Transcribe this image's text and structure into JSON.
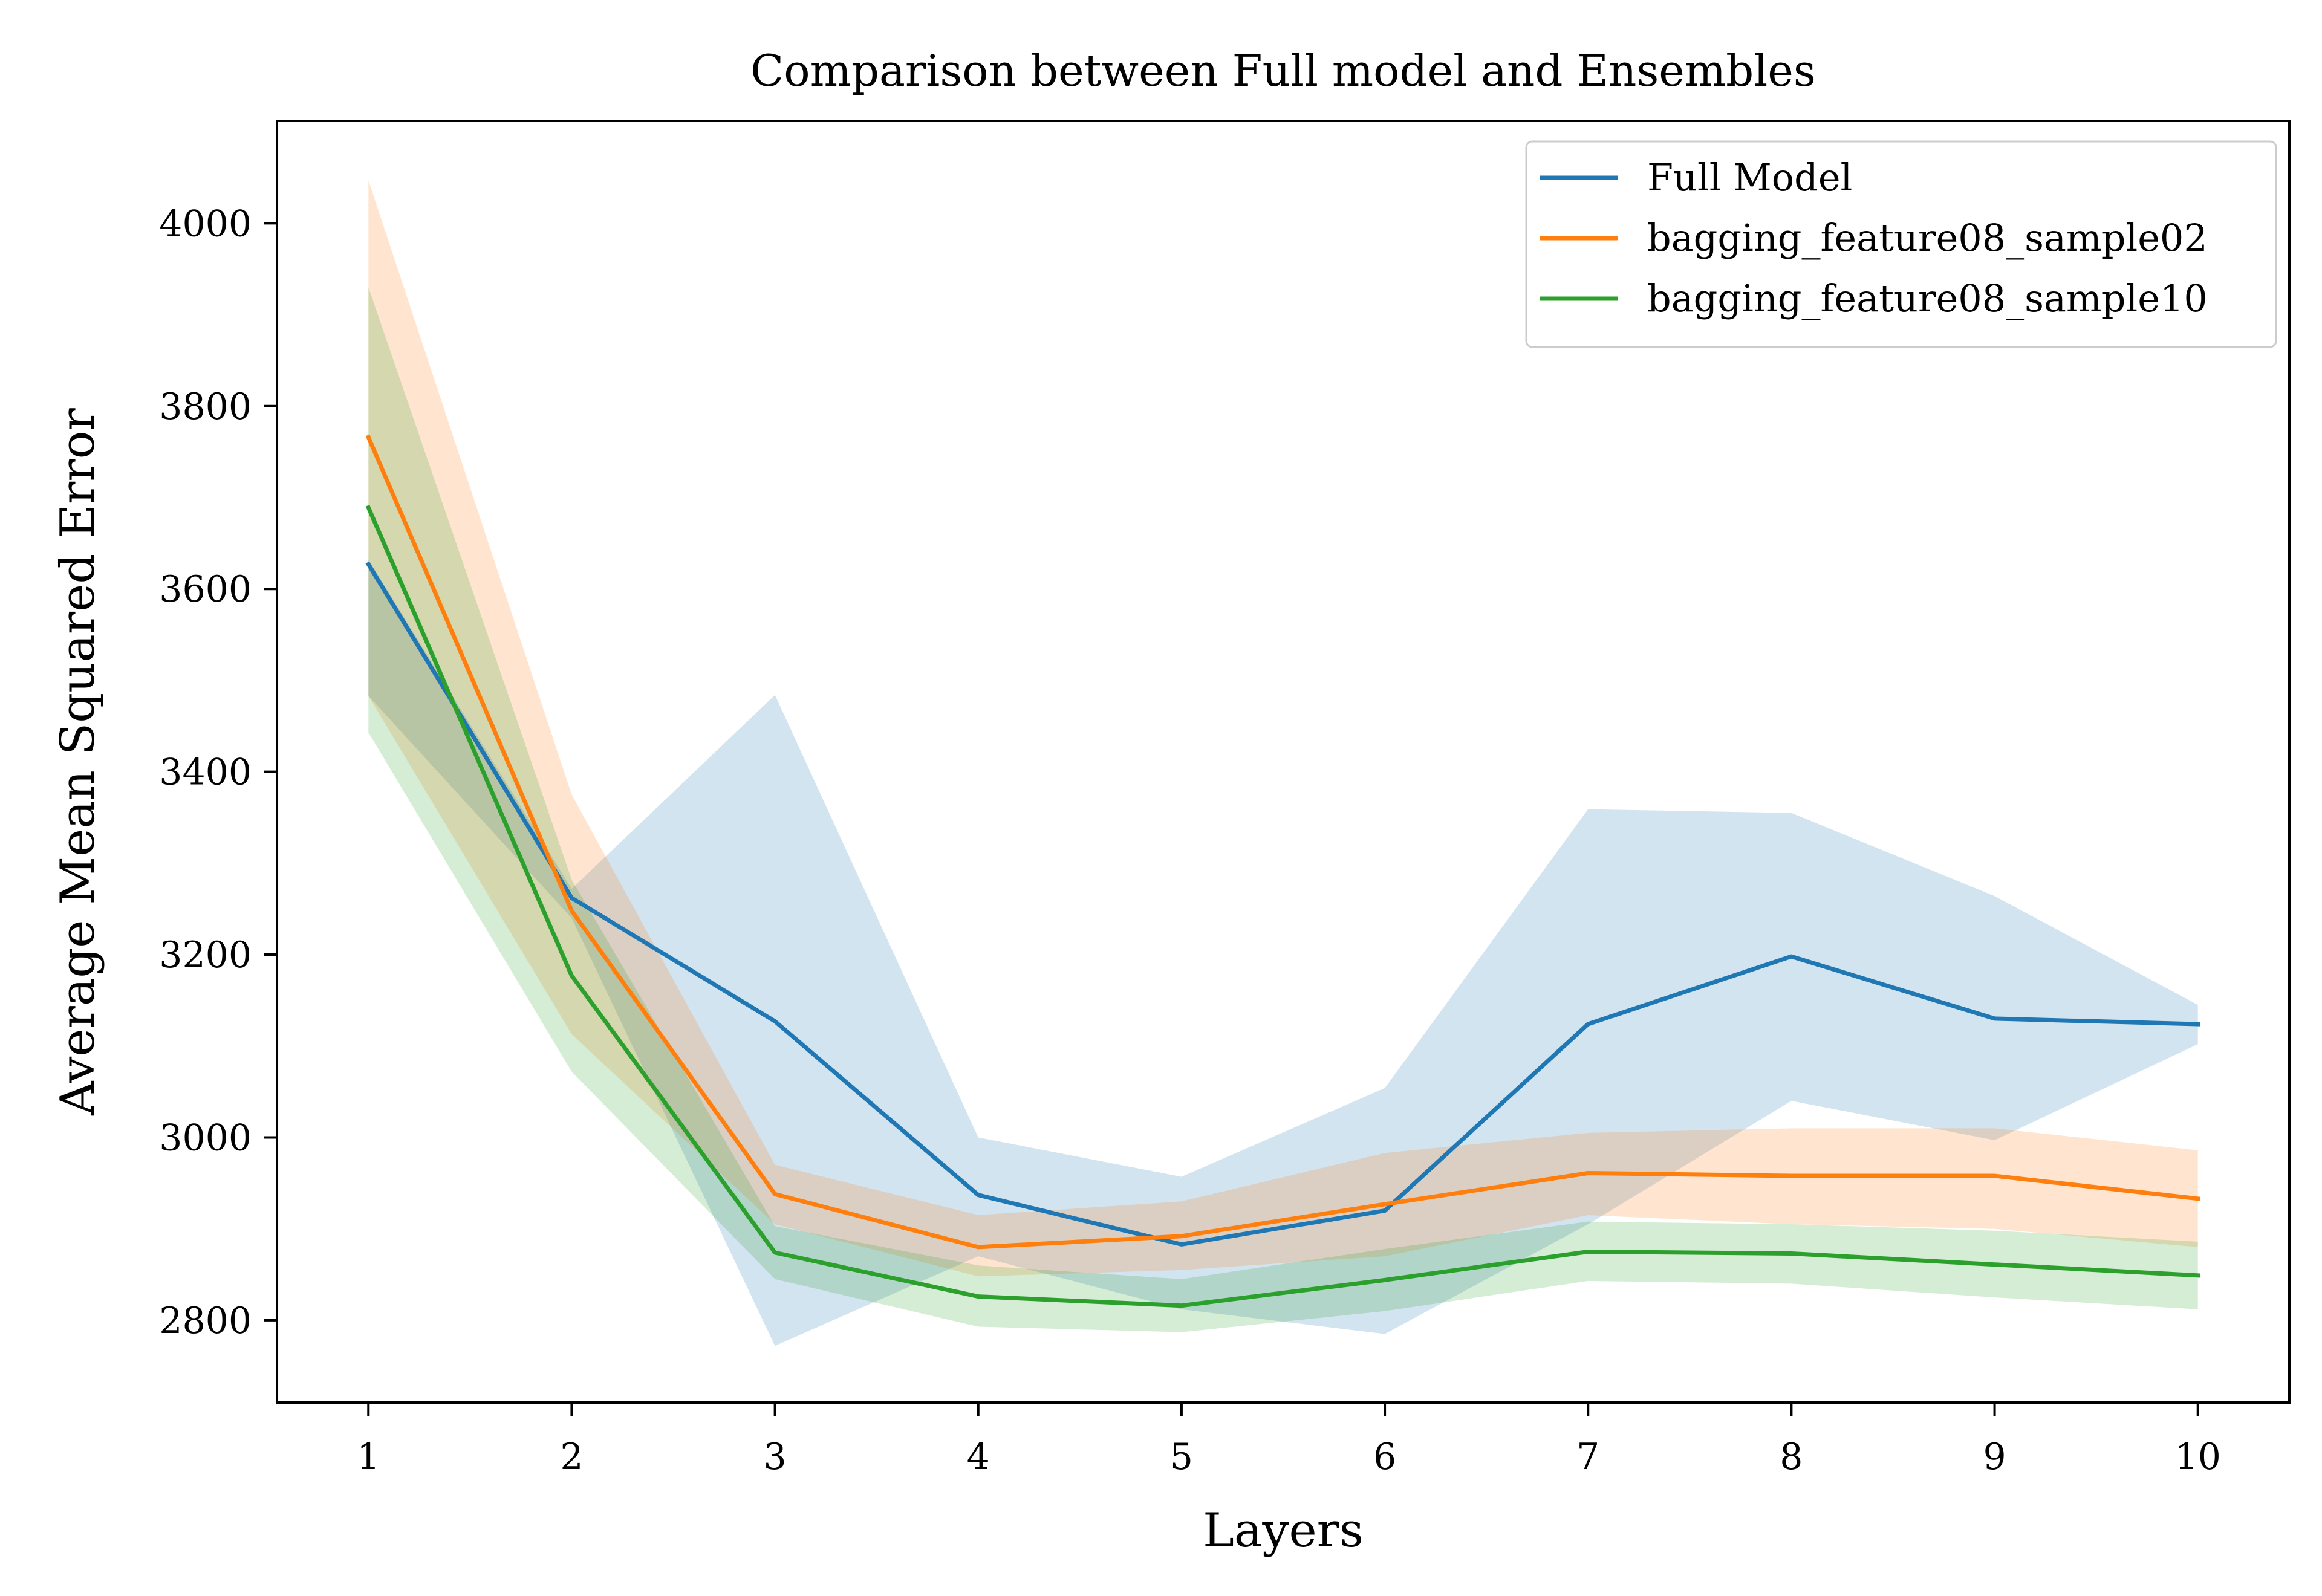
{
  "chart_data": {
    "type": "line",
    "title": "Comparison between Full model and Ensembles",
    "xlabel": "Layers",
    "ylabel": "Average Mean Squared Error",
    "x": [
      1,
      2,
      3,
      4,
      5,
      6,
      7,
      8,
      9,
      10
    ],
    "x_ticks": [
      "1",
      "2",
      "3",
      "4",
      "5",
      "6",
      "7",
      "8",
      "9",
      "10"
    ],
    "y_ticks": [
      "2800",
      "3000",
      "3200",
      "3400",
      "3600",
      "3800",
      "4000"
    ],
    "xlim": [
      0.55,
      10.45
    ],
    "ylim": [
      2710,
      4112
    ],
    "grid": false,
    "legend_position": "top-right",
    "series": [
      {
        "name": "Full Model",
        "color": "#1f77b4",
        "values": [
          3627,
          3262,
          3127,
          2937,
          2883,
          2920,
          3124,
          3198,
          3130,
          3124
        ],
        "lower": [
          3483,
          3240,
          2772,
          2870,
          2812,
          2785,
          2905,
          3040,
          2997,
          3102
        ],
        "upper": [
          3632,
          3272,
          3484,
          3000,
          2957,
          3054,
          3359,
          3355,
          3264,
          3145
        ]
      },
      {
        "name": "bagging_feature08_sample02",
        "color": "#ff7f0e",
        "values": [
          3766,
          3248,
          2938,
          2880,
          2892,
          2927,
          2961,
          2958,
          2958,
          2933
        ],
        "lower": [
          3483,
          3113,
          2905,
          2848,
          2855,
          2870,
          2915,
          2905,
          2900,
          2880
        ],
        "upper": [
          4047,
          3375,
          2970,
          2915,
          2930,
          2983,
          3005,
          3010,
          3010,
          2986
        ]
      },
      {
        "name": "bagging_feature08_sample10",
        "color": "#2ca02c",
        "values": [
          3689,
          3177,
          2874,
          2826,
          2816,
          2844,
          2875,
          2873,
          2861,
          2849
        ],
        "lower": [
          3443,
          3072,
          2845,
          2793,
          2787,
          2810,
          2843,
          2840,
          2825,
          2812
        ],
        "upper": [
          3930,
          3282,
          2903,
          2860,
          2845,
          2878,
          2908,
          2905,
          2898,
          2886
        ]
      }
    ]
  }
}
